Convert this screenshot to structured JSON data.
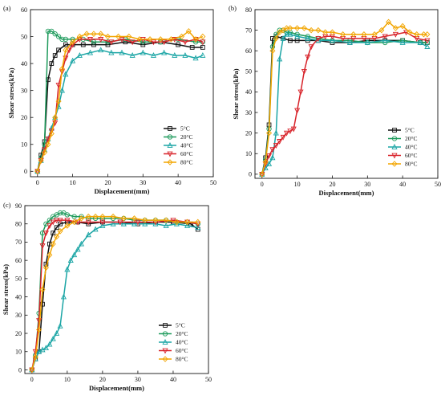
{
  "chart_data": [
    {
      "type": "line",
      "panel_label": "(a)",
      "xlabel": "Displacement(mm)",
      "ylabel": "Shear stress(kPa)",
      "xlim": [
        -2,
        50
      ],
      "ylim": [
        -2,
        60
      ],
      "xticks": [
        0,
        10,
        20,
        30,
        40,
        50
      ],
      "yticks": [
        0,
        10,
        20,
        30,
        40,
        50,
        60
      ],
      "legend_position": "lower-right",
      "series": [
        {
          "name": "5°C",
          "color": "#111111",
          "marker": "square",
          "x": [
            0,
            1,
            2,
            3,
            4,
            5,
            6,
            8,
            10,
            13,
            16,
            20,
            25,
            30,
            35,
            40,
            44,
            47
          ],
          "y": [
            0,
            6,
            11,
            34,
            40,
            43,
            45,
            47,
            47,
            47,
            47,
            47,
            48,
            47,
            48,
            47,
            46,
            46
          ]
        },
        {
          "name": "20°C",
          "color": "#1d9a5b",
          "marker": "circle",
          "x": [
            0,
            1,
            2,
            3,
            4,
            5,
            6,
            7,
            8,
            10,
            13,
            16,
            20,
            25,
            30,
            35,
            40,
            45,
            47
          ],
          "y": [
            0,
            5,
            10,
            52,
            52,
            51,
            50,
            49,
            49,
            49,
            49,
            48,
            48,
            49,
            48,
            48,
            49,
            48,
            48
          ]
        },
        {
          "name": "40°C",
          "color": "#1ba5a5",
          "marker": "triangle-up",
          "x": [
            0,
            1,
            2,
            3,
            4,
            5,
            6,
            7,
            8,
            10,
            12,
            15,
            18,
            21,
            24,
            27,
            30,
            33,
            36,
            39,
            42,
            45,
            47
          ],
          "y": [
            0,
            4,
            8,
            12,
            16,
            20,
            24,
            30,
            36,
            41,
            43,
            44,
            45,
            44,
            44,
            43,
            44,
            43,
            44,
            43,
            43,
            42,
            43
          ]
        },
        {
          "name": "60°C",
          "color": "#d8232a",
          "marker": "triangle-down",
          "x": [
            0,
            1,
            2,
            3,
            4,
            5,
            6,
            7,
            8,
            9,
            10,
            12,
            15,
            18,
            21,
            24,
            27,
            30,
            33,
            36,
            39,
            42,
            45,
            47
          ],
          "y": [
            0,
            4,
            8,
            12,
            15,
            18,
            32,
            37,
            42,
            45,
            47,
            49,
            49,
            49,
            48,
            49,
            48,
            49,
            48,
            48,
            49,
            48,
            49,
            48
          ]
        },
        {
          "name": "80°C",
          "color": "#f2a500",
          "marker": "diamond",
          "x": [
            0,
            1,
            2,
            3,
            4,
            5,
            6,
            7,
            8,
            10,
            12,
            14,
            16,
            18,
            20,
            23,
            26,
            29,
            32,
            35,
            38,
            41,
            43,
            45,
            47
          ],
          "y": [
            0,
            4,
            7,
            10,
            14,
            20,
            26,
            38,
            45,
            48,
            50,
            51,
            51,
            51,
            50,
            50,
            50,
            49,
            49,
            49,
            49,
            50,
            52,
            49,
            50
          ]
        }
      ]
    },
    {
      "type": "line",
      "panel_label": "(b)",
      "xlabel": "Displacement(mm)",
      "ylabel": "Shear stress(kPa)",
      "xlim": [
        -2,
        50
      ],
      "ylim": [
        -2,
        80
      ],
      "xticks": [
        0,
        10,
        20,
        30,
        40,
        50
      ],
      "yticks": [
        0,
        10,
        20,
        30,
        40,
        50,
        60,
        70,
        80
      ],
      "legend_position": "lower-right",
      "series": [
        {
          "name": "5°C",
          "color": "#111111",
          "marker": "square",
          "x": [
            0,
            1,
            2,
            3,
            4,
            6,
            8,
            10,
            13,
            16,
            20,
            25,
            30,
            35,
            40,
            45,
            47
          ],
          "y": [
            0,
            8,
            24,
            66,
            67,
            66,
            65,
            65,
            65,
            65,
            64,
            64,
            65,
            65,
            65,
            64,
            64
          ]
        },
        {
          "name": "20°C",
          "color": "#1d9a5b",
          "marker": "circle",
          "x": [
            0,
            1,
            2,
            3,
            4,
            5,
            6,
            7,
            8,
            10,
            13,
            16,
            20,
            25,
            30,
            35,
            40,
            45,
            47
          ],
          "y": [
            0,
            7,
            22,
            62,
            68,
            70,
            70,
            69,
            69,
            68,
            67,
            66,
            65,
            65,
            64,
            64,
            65,
            64,
            64
          ]
        },
        {
          "name": "40°C",
          "color": "#1ba5a5",
          "marker": "triangle-up",
          "x": [
            0,
            1,
            2,
            3,
            4,
            5,
            6,
            7,
            8,
            10,
            13,
            16,
            20,
            25,
            30,
            35,
            40,
            45,
            47
          ],
          "y": [
            0,
            3,
            5,
            8,
            20,
            56,
            66,
            68,
            68,
            67,
            66,
            65,
            65,
            64,
            64,
            65,
            64,
            64,
            62
          ]
        },
        {
          "name": "60°C",
          "color": "#d8232a",
          "marker": "triangle-down",
          "x": [
            0,
            1,
            2,
            3,
            4,
            5,
            6,
            7,
            8,
            9,
            10,
            11,
            12,
            13,
            14,
            16,
            18,
            20,
            23,
            26,
            29,
            32,
            35,
            38,
            41,
            44,
            47
          ],
          "y": [
            0,
            5,
            9,
            12,
            14,
            16,
            18,
            20,
            21,
            22,
            31,
            40,
            50,
            57,
            62,
            66,
            67,
            67,
            66,
            66,
            66,
            66,
            67,
            68,
            69,
            66,
            65
          ]
        },
        {
          "name": "80°C",
          "color": "#f2a500",
          "marker": "diamond",
          "x": [
            0,
            1,
            2,
            3,
            4,
            5,
            6,
            7,
            8,
            10,
            12,
            14,
            16,
            18,
            20,
            23,
            26,
            29,
            32,
            34,
            36,
            38,
            40,
            42,
            44,
            46,
            47
          ],
          "y": [
            0,
            6,
            20,
            60,
            66,
            69,
            70,
            71,
            71,
            71,
            71,
            70,
            70,
            69,
            69,
            68,
            68,
            68,
            68,
            70,
            74,
            71,
            72,
            69,
            68,
            68,
            68
          ]
        }
      ]
    },
    {
      "type": "line",
      "panel_label": "(c)",
      "xlabel": "Displacement(mm)",
      "ylabel": "Shear stress(kPa)",
      "xlim": [
        -2,
        50
      ],
      "ylim": [
        -2,
        90
      ],
      "xticks": [
        0,
        10,
        20,
        30,
        40,
        50
      ],
      "yticks": [
        0,
        10,
        20,
        30,
        40,
        50,
        60,
        70,
        80,
        90
      ],
      "legend_position": "lower-right",
      "series": [
        {
          "name": "5°C",
          "color": "#111111",
          "marker": "square",
          "x": [
            0,
            1,
            2,
            3,
            4,
            5,
            6,
            7,
            8,
            10,
            13,
            16,
            20,
            25,
            30,
            35,
            40,
            45,
            47
          ],
          "y": [
            0,
            6,
            10,
            36,
            58,
            69,
            75,
            78,
            80,
            81,
            81,
            80,
            81,
            81,
            80,
            81,
            81,
            80,
            77
          ]
        },
        {
          "name": "20°C",
          "color": "#1d9a5b",
          "marker": "circle",
          "x": [
            0,
            1,
            2,
            3,
            4,
            5,
            6,
            7,
            8,
            9,
            10,
            12,
            14,
            16,
            18,
            20,
            23,
            26,
            29,
            32,
            35,
            38,
            41,
            44,
            47
          ],
          "y": [
            0,
            8,
            31,
            75,
            80,
            82,
            84,
            85,
            86,
            86,
            85,
            84,
            84,
            83,
            83,
            83,
            83,
            83,
            82,
            82,
            82,
            82,
            81,
            81,
            80
          ]
        },
        {
          "name": "40°C",
          "color": "#1ba5a5",
          "marker": "triangle-up",
          "x": [
            0,
            1,
            2,
            3,
            4,
            5,
            6,
            7,
            8,
            9,
            10,
            11,
            12,
            13,
            14,
            16,
            18,
            20,
            23,
            26,
            29,
            32,
            35,
            38,
            41,
            44,
            47
          ],
          "y": [
            0,
            6,
            10,
            11,
            12,
            14,
            17,
            20,
            24,
            40,
            55,
            60,
            63,
            66,
            69,
            74,
            77,
            79,
            80,
            80,
            80,
            80,
            80,
            79,
            80,
            79,
            78
          ]
        },
        {
          "name": "60°C",
          "color": "#d8232a",
          "marker": "triangle-down",
          "x": [
            0,
            1,
            2,
            3,
            4,
            5,
            6,
            7,
            8,
            10,
            13,
            16,
            20,
            25,
            30,
            35,
            40,
            44,
            47
          ],
          "y": [
            0,
            10,
            27,
            68,
            75,
            79,
            81,
            82,
            82,
            82,
            81,
            81,
            81,
            81,
            81,
            81,
            82,
            81,
            80
          ]
        },
        {
          "name": "80°C",
          "color": "#f2a500",
          "marker": "diamond",
          "x": [
            0,
            1,
            2,
            3,
            4,
            5,
            6,
            7,
            8,
            10,
            12,
            14,
            16,
            18,
            20,
            23,
            26,
            29,
            32,
            35,
            38,
            41,
            44,
            47
          ],
          "y": [
            0,
            7,
            22,
            44,
            56,
            63,
            69,
            73,
            76,
            79,
            81,
            83,
            84,
            84,
            84,
            84,
            83,
            83,
            82,
            82,
            82,
            81,
            81,
            81
          ]
        }
      ]
    }
  ]
}
